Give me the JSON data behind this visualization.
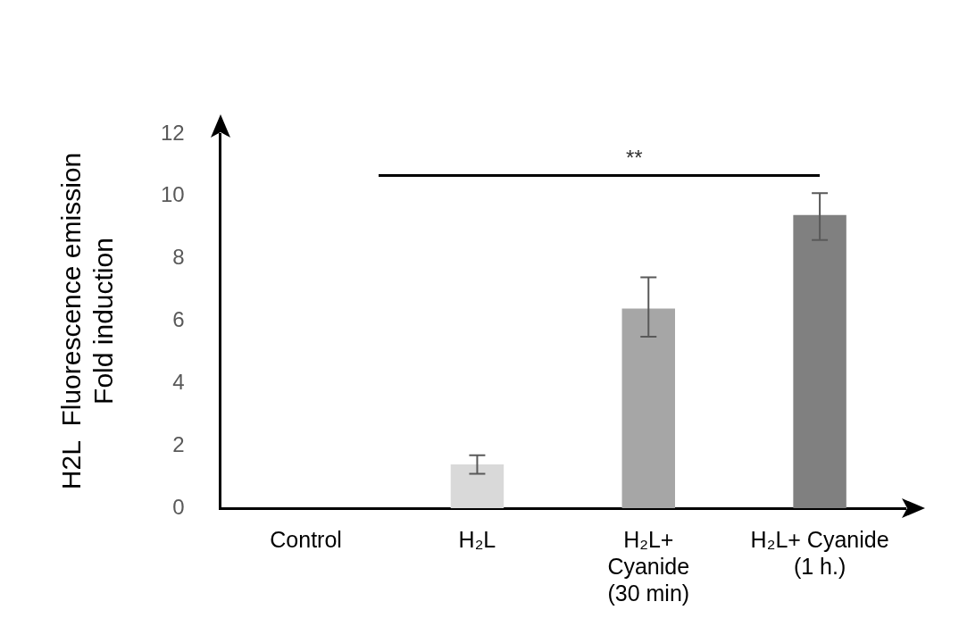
{
  "chart_data": {
    "type": "bar",
    "ylabel": "H2L  Fluorescence emission\nFold induction",
    "categories": [
      "Control",
      "H₂L",
      "H₂L+\nCyanide\n(30 min)",
      "H₂L+ Cyanide\n(1 h.)"
    ],
    "values": [
      0,
      1.4,
      6.4,
      9.4
    ],
    "colors": [
      "#f2f2f2",
      "#d9d9d9",
      "#a6a6a6",
      "#808080"
    ],
    "errors": [
      null,
      0.3,
      [
        5.5,
        7.4
      ],
      [
        8.6,
        10.1
      ]
    ],
    "ylim": [
      0,
      12
    ],
    "yticks": [
      0,
      2,
      4,
      6,
      8,
      10,
      12
    ],
    "grid": false,
    "legend": false,
    "annotations": [
      "**"
    ]
  }
}
